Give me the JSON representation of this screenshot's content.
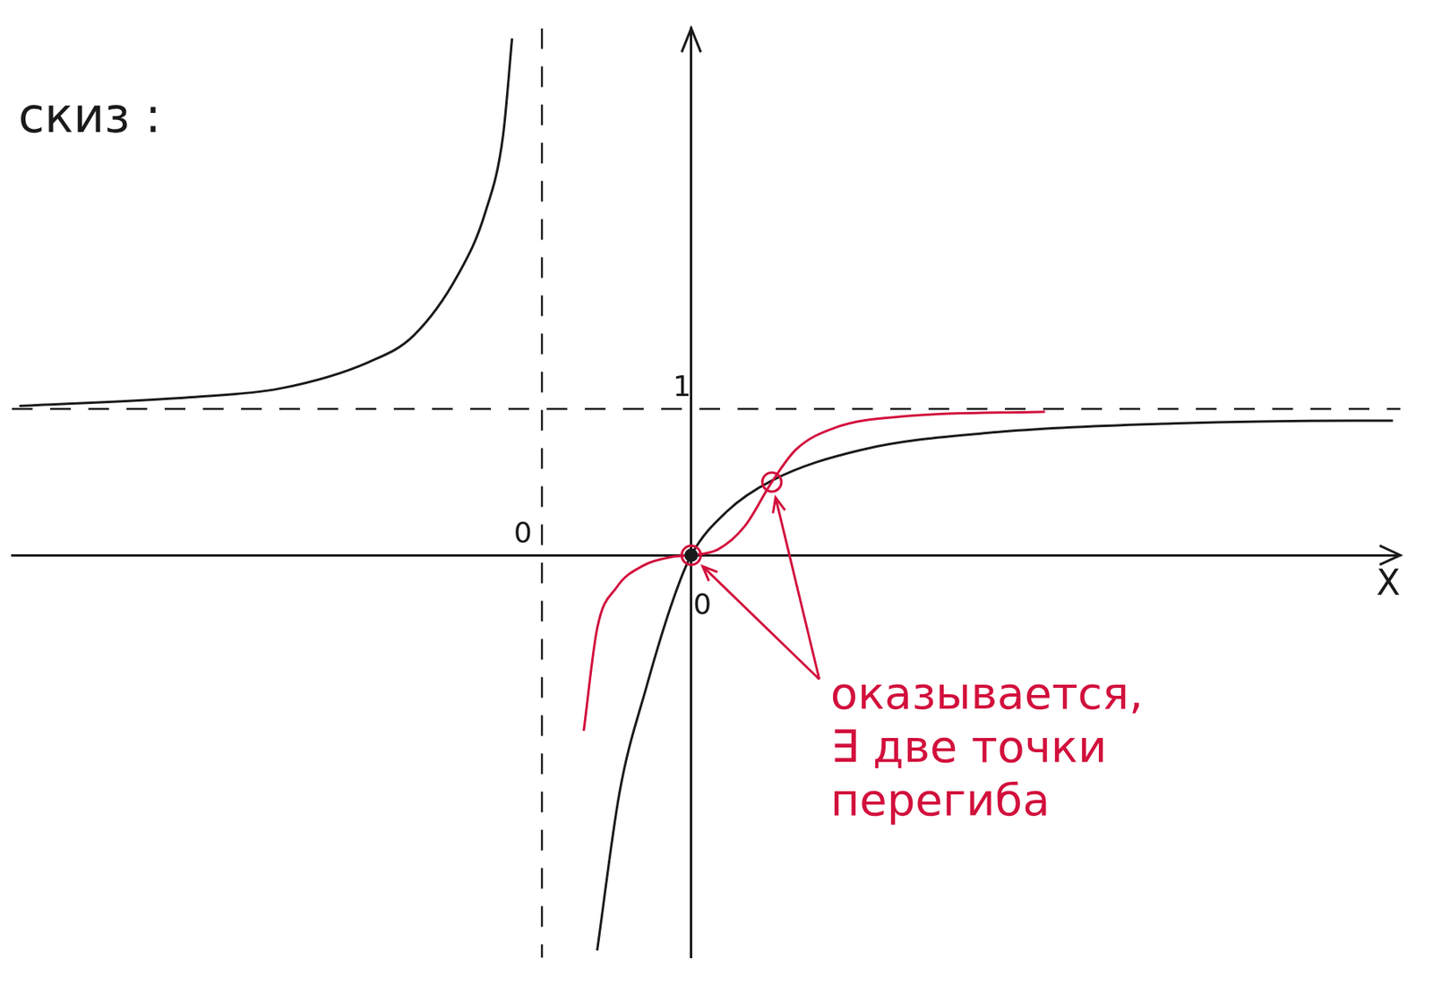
{
  "chart_data": {
    "type": "line",
    "title": "скиз :",
    "x_label": "X",
    "xlim": [
      -4.55,
      4.75
    ],
    "ylim": [
      -2.75,
      3.6
    ],
    "xticks": [],
    "yticks": [
      1
    ],
    "grid": false,
    "tick_labels": "y",
    "asymptotes": {
      "x": -1,
      "y": 1
    },
    "series": [
      {
        "color": "#1a1a1a",
        "x": [
          -4.5,
          -3.35,
          -2.75,
          -2.16,
          -1.86,
          -1.56,
          -1.38,
          -1.26,
          -1.2
        ],
        "values": [
          1.02,
          1.08,
          1.14,
          1.32,
          1.5,
          1.92,
          2.34,
          2.87,
          3.53
        ]
      },
      {
        "color": "#1a1a1a",
        "x": [
          -0.63,
          -0.48,
          -0.3,
          -0.12,
          0,
          0.24,
          0.54,
          1.14,
          2.04,
          3.23,
          4.43,
          4.7
        ],
        "values": [
          -2.7,
          -1.62,
          -0.9,
          -0.3,
          0,
          0.3,
          0.51,
          0.72,
          0.84,
          0.9,
          0.92,
          0.92
        ]
      },
      {
        "color": "#d2103c",
        "x": [
          -0.72,
          -0.63,
          -0.5,
          -0.32,
          -0.12,
          0,
          0.18,
          0.36,
          0.54,
          0.7,
          0.96,
          1.44,
          2.37
        ],
        "values": [
          -1.2,
          -0.5,
          -0.22,
          -0.07,
          -0.01,
          0,
          0.04,
          0.2,
          0.5,
          0.72,
          0.87,
          0.95,
          0.98
        ]
      },
      {
        "color": "#1a1a1a",
        "type": "scatter",
        "marker": "dot",
        "x": [
          0
        ],
        "values": [
          0
        ]
      },
      {
        "color": "#d2103c",
        "type": "scatter",
        "marker": "circle",
        "x": [
          0,
          0.54
        ],
        "values": [
          0,
          0.5
        ]
      }
    ],
    "annotations": [
      {
        "text": "0",
        "x": -1,
        "y": 0
      },
      {
        "text": "0",
        "x": 0,
        "y": 0
      },
      {
        "text": [
          "оказывается,",
          "∃ две точки",
          "перегиба"
        ],
        "color": "#d2103c"
      }
    ]
  }
}
